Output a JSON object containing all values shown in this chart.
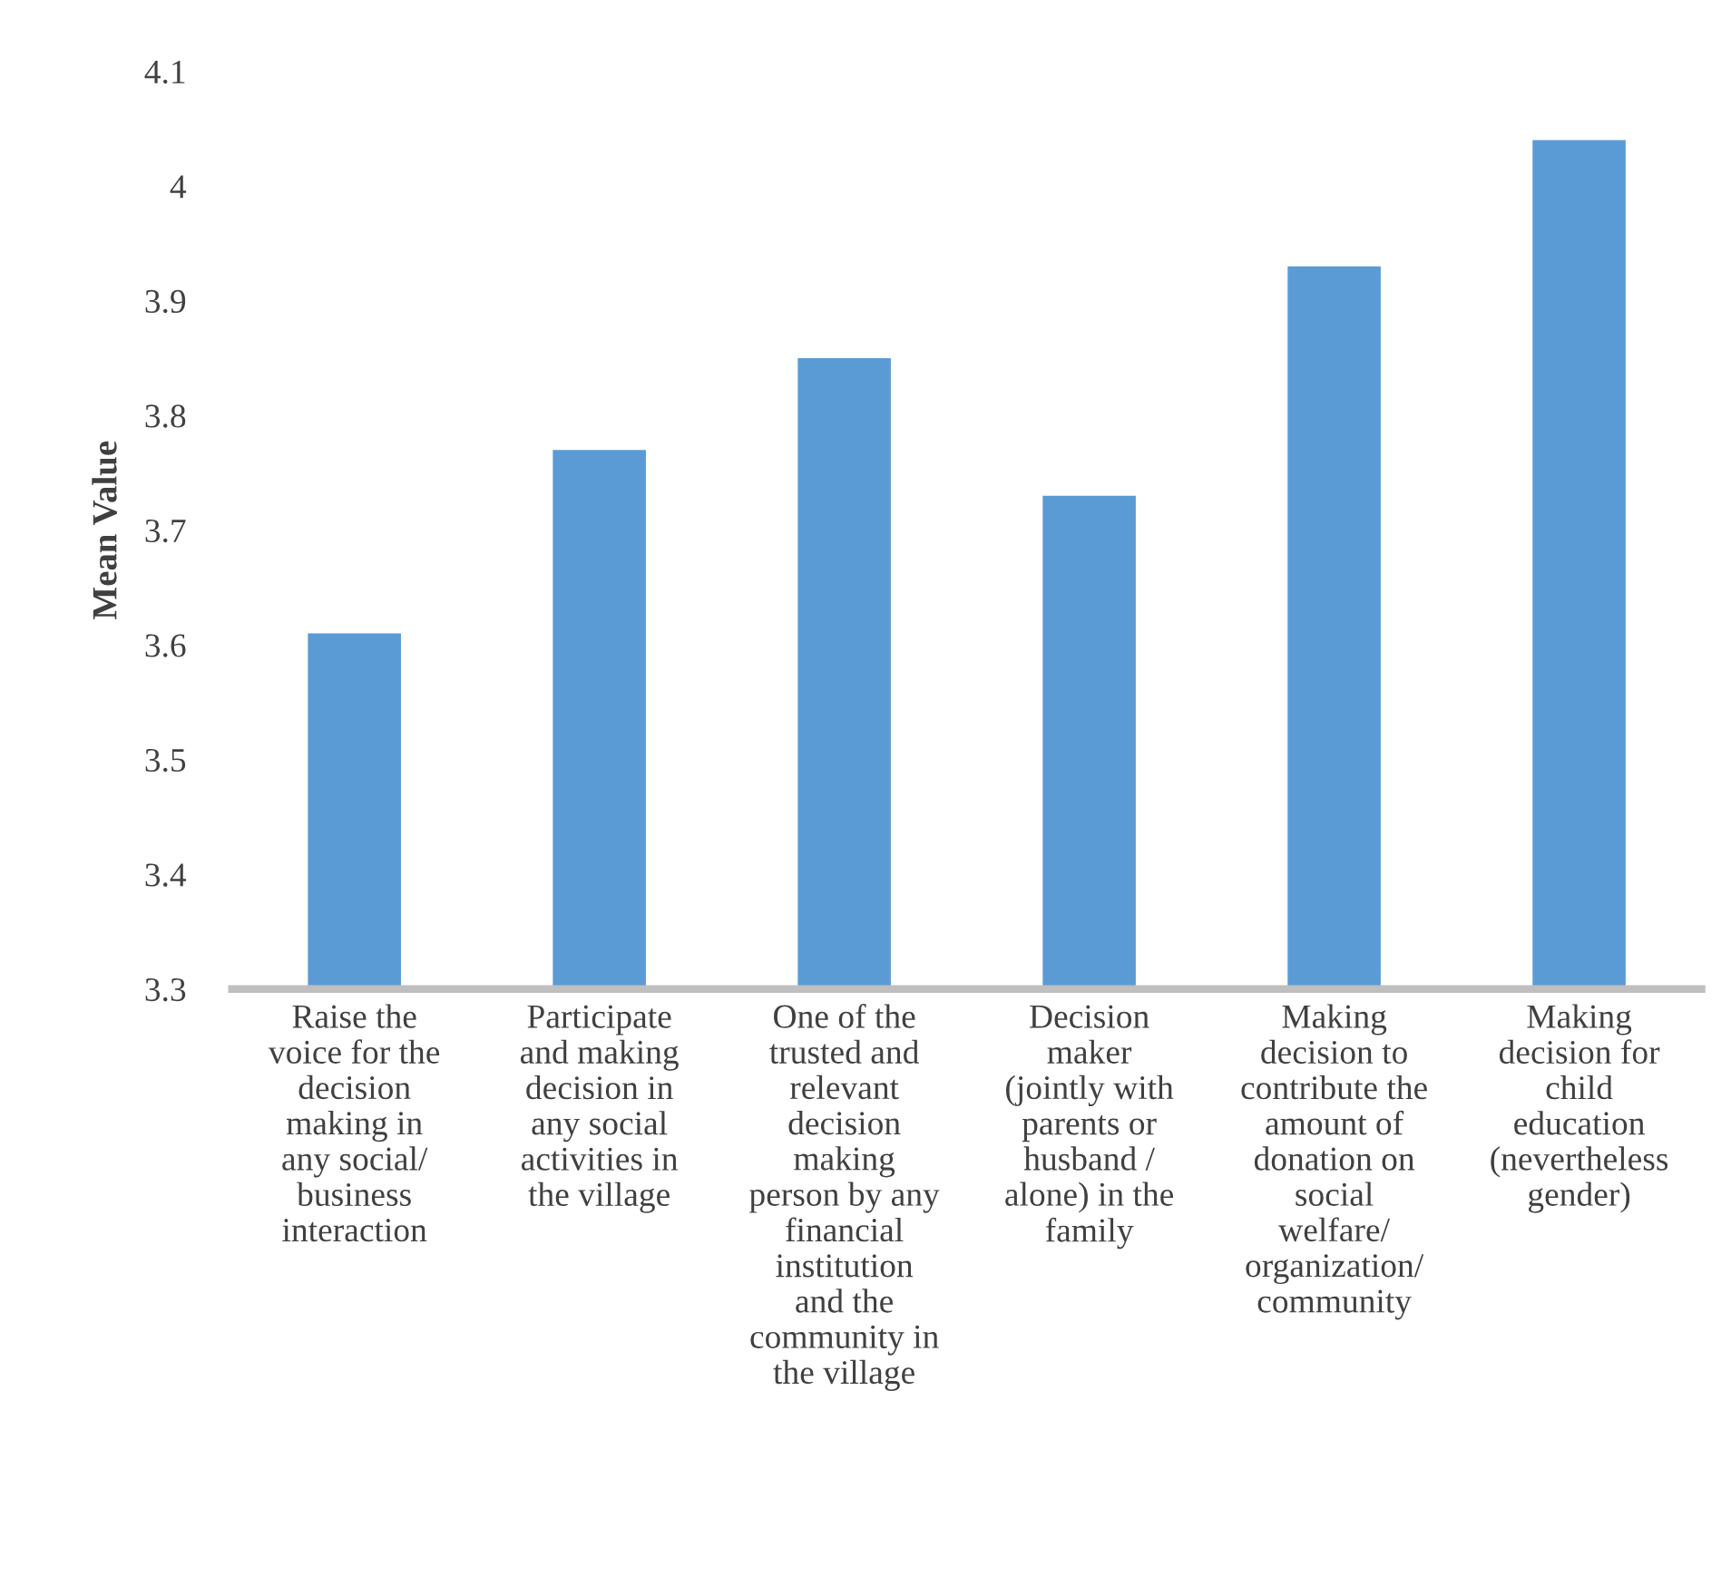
{
  "chart_data": {
    "type": "bar",
    "ylabel": "Mean Value",
    "categories": [
      "Raise the\nvoice for the\ndecision\nmaking in\nany social/\nbusiness\ninteraction",
      "Participate\nand making\ndecision in\nany social\nactivities in\nthe village",
      "One of the\ntrusted and\nrelevant\ndecision\nmaking\nperson by any\nfinancial\ninstitution\nand the\ncommunity in\nthe village",
      "Decision\nmaker\n(jointly with\nparents or\nhusband /\nalone) in the\nfamily",
      "Making\ndecision to\ncontribute the\namount of\ndonation on\nsocial\nwelfare/\norganization/\ncommunity",
      "Making\ndecision for\nchild\neducation\n(nevertheless\ngender)"
    ],
    "values": [
      3.61,
      3.77,
      3.85,
      3.73,
      3.93,
      4.04
    ],
    "color": "#5b9bd5",
    "ylim": [
      3.3,
      4.1
    ],
    "yticks": [
      3.3,
      3.4,
      3.5,
      3.6,
      3.7,
      3.8,
      3.9,
      {
        "value": 4.0,
        "label": "4"
      },
      4.1
    ],
    "grid": false
  }
}
